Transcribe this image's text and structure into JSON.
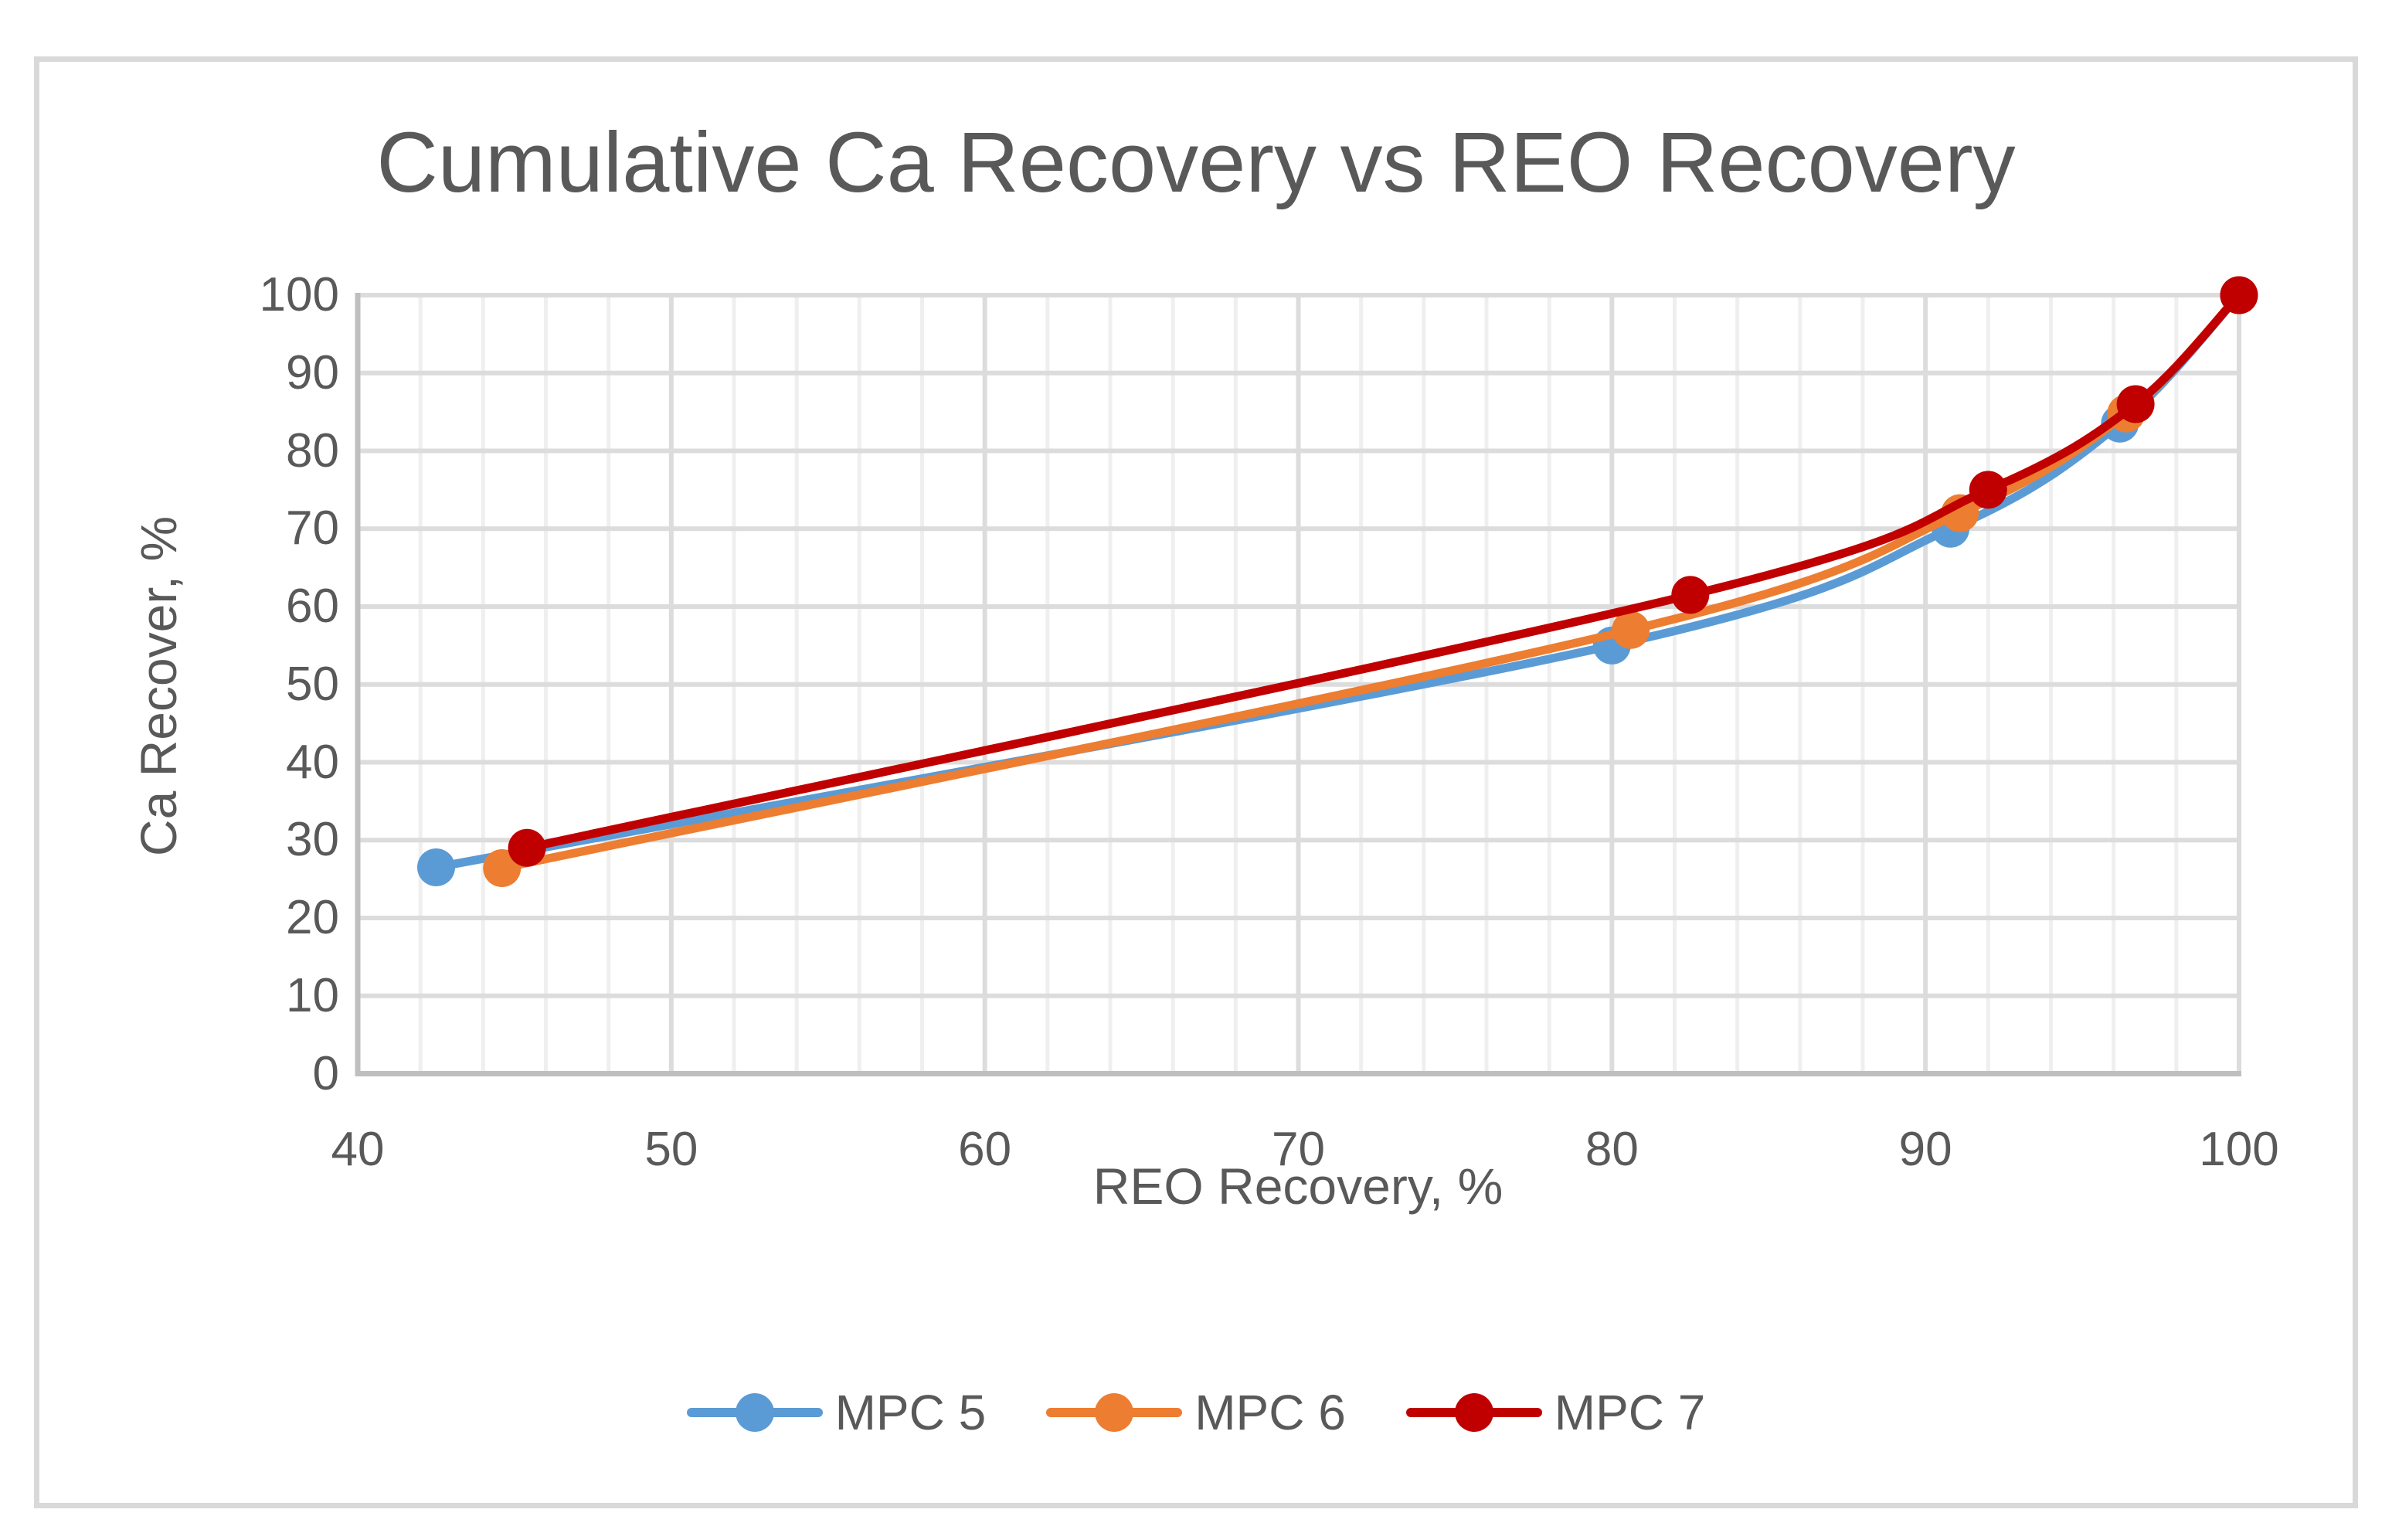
{
  "chart_data": {
    "type": "line",
    "title": "Cumulative Ca Recovery vs REO Recovery",
    "xlabel": "REO Recovery, %",
    "ylabel": "Ca Recover, %",
    "xlim": [
      40,
      100
    ],
    "ylim": [
      0,
      100
    ],
    "x_ticks": [
      40,
      50,
      60,
      70,
      80,
      90,
      100
    ],
    "y_ticks": [
      0,
      10,
      20,
      30,
      40,
      50,
      60,
      70,
      80,
      90,
      100
    ],
    "grid": {
      "horizontal_major_step": 10,
      "vertical_major_step": 10,
      "vertical_minor_step": 2
    },
    "legend_position": "bottom-center",
    "smooth_lines": true,
    "marker": "circle",
    "series": [
      {
        "name": "MPC 5",
        "color": "#5B9BD5",
        "points": [
          [
            42.5,
            26.5
          ],
          [
            80.0,
            55.0
          ],
          [
            90.8,
            70.0
          ],
          [
            96.2,
            83.5
          ],
          [
            100,
            100
          ]
        ]
      },
      {
        "name": "MPC 6",
        "color": "#ED7D31",
        "points": [
          [
            44.6,
            26.4
          ],
          [
            80.6,
            57.0
          ],
          [
            91.1,
            72.0
          ],
          [
            96.4,
            84.8
          ],
          [
            100,
            100
          ]
        ]
      },
      {
        "name": "MPC 7",
        "color": "#C00000",
        "points": [
          [
            45.4,
            29.0
          ],
          [
            82.5,
            61.5
          ],
          [
            92.0,
            75.0
          ],
          [
            96.7,
            86.0
          ],
          [
            100,
            100
          ]
        ]
      }
    ]
  },
  "styles": {
    "text_color": "#595959",
    "grid_major_color": "#DCDCDC",
    "grid_minor_color": "#EFEFEF",
    "axis_line_color": "#BFBFBF",
    "chart_border_color": "#D9D9D9",
    "background": "#FFFFFF"
  }
}
